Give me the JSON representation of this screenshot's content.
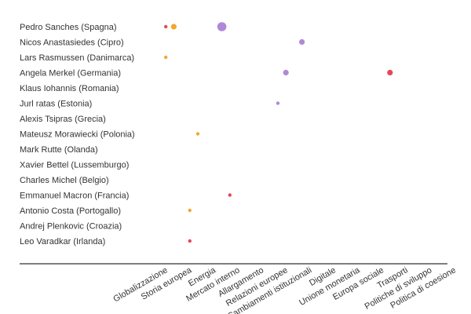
{
  "chart_data": {
    "type": "scatter",
    "title": "",
    "xlabel": "",
    "ylabel": "",
    "rows": [
      "Pedro Sanches (Spagna)",
      "Nicos Anastasiedes (Cipro)",
      "Lars Rasmussen (Danimarca)",
      "Angela Merkel (Germania)",
      "Klaus Iohannis (Romania)",
      "Jurl ratas (Estonia)",
      "Alexis Tsipras (Grecia)",
      "Mateusz Morawiecki (Polonia)",
      "Mark Rutte (Olanda)",
      "Xavier Bettel (Lussemburgo)",
      "Charles Michel (Belgio)",
      "Emmanuel Macron (Francia)",
      "Antonio Costa (Portogallo)",
      "Andrej Plenkovic (Croazia)",
      "Leo Varadkar (Irlanda)"
    ],
    "columns": [
      "Globalizzazione",
      "Storia europea",
      "Energia",
      "Mercato interno",
      "Allargamento",
      "Relazioni europee",
      "Cambiamenti istituzionali",
      "Digitale",
      "Unione monetaria",
      "Europa sociale",
      "Trasporti",
      "Politiche di sviluppo",
      "Politica di coesione"
    ],
    "columns_per_topic": 3,
    "series": [
      {
        "color": "#e8455a",
        "points": [
          [
            0,
            1,
            1
          ],
          [
            3,
            29,
            2
          ],
          [
            11,
            9,
            1
          ],
          [
            14,
            4,
            1
          ]
        ]
      },
      {
        "color": "#f0a830",
        "points": [
          [
            0,
            2,
            2
          ],
          [
            2,
            1,
            1
          ],
          [
            7,
            5,
            1
          ],
          [
            12,
            4,
            1
          ]
        ]
      },
      {
        "color": "#b088d8",
        "points": [
          [
            0,
            8,
            3
          ],
          [
            1,
            18,
            2
          ],
          [
            3,
            16,
            2
          ],
          [
            5,
            15,
            1
          ]
        ]
      }
    ]
  }
}
